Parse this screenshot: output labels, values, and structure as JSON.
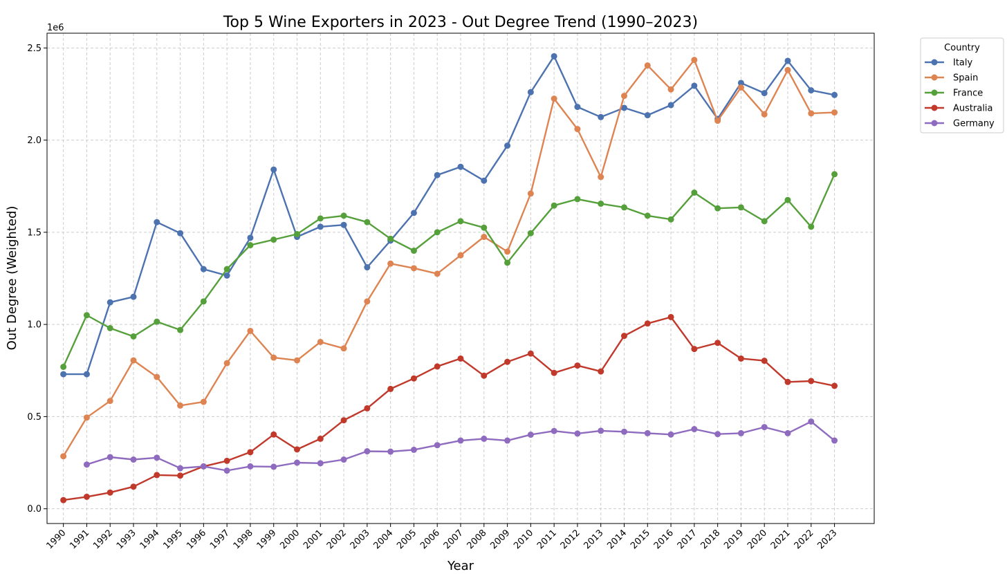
{
  "chart_data": {
    "type": "line",
    "title": "Top 5 Wine Exporters in 2023 - Out Degree Trend (1990–2023)",
    "xlabel": "Year",
    "ylabel": "Out Degree (Weighted)",
    "y_multiplier_label": "1e6",
    "x": [
      1990,
      1991,
      1992,
      1993,
      1994,
      1995,
      1996,
      1997,
      1998,
      1999,
      2000,
      2001,
      2002,
      2003,
      2004,
      2005,
      2006,
      2007,
      2008,
      2009,
      2010,
      2011,
      2012,
      2013,
      2014,
      2015,
      2016,
      2017,
      2018,
      2019,
      2020,
      2021,
      2022,
      2023
    ],
    "xlim": [
      1989.3,
      2024.7
    ],
    "ylim": [
      -0.08,
      2.58
    ],
    "y_ticks": [
      0.0,
      0.5,
      1.0,
      1.5,
      2.0,
      2.5
    ],
    "y_tick_labels": [
      "0.0",
      "0.5",
      "1.0",
      "1.5",
      "2.0",
      "2.5"
    ],
    "grid": true,
    "legend": {
      "title": "Country",
      "placement": "outside-top-right"
    },
    "series": [
      {
        "name": "Italy",
        "color": "#4c72b0",
        "values": [
          0.73,
          0.73,
          1.12,
          1.15,
          1.555,
          1.495,
          1.3,
          1.265,
          1.47,
          1.84,
          1.475,
          1.53,
          1.54,
          1.31,
          1.455,
          1.605,
          1.81,
          1.855,
          1.78,
          1.97,
          2.26,
          2.455,
          2.18,
          2.125,
          2.175,
          2.135,
          2.19,
          2.295,
          2.115,
          2.31,
          2.255,
          2.43,
          2.27,
          2.245
        ]
      },
      {
        "name": "Spain",
        "color": "#dd8452",
        "values": [
          0.285,
          0.495,
          0.585,
          0.805,
          0.715,
          0.56,
          0.58,
          0.79,
          0.965,
          0.82,
          0.805,
          0.905,
          0.87,
          1.125,
          1.33,
          1.305,
          1.275,
          1.375,
          1.475,
          1.395,
          1.71,
          2.225,
          2.06,
          1.8,
          2.24,
          2.405,
          2.275,
          2.435,
          2.105,
          2.285,
          2.14,
          2.38,
          2.145,
          2.15
        ]
      },
      {
        "name": "France",
        "color": "#55a03b",
        "values": [
          0.77,
          1.05,
          0.98,
          0.935,
          1.015,
          0.97,
          1.125,
          1.3,
          1.43,
          1.46,
          1.49,
          1.575,
          1.59,
          1.555,
          1.465,
          1.4,
          1.5,
          1.56,
          1.525,
          1.335,
          1.495,
          1.645,
          1.68,
          1.655,
          1.635,
          1.59,
          1.57,
          1.715,
          1.63,
          1.635,
          1.56,
          1.675,
          1.53,
          1.815
        ]
      },
      {
        "name": "Australia",
        "color": "#c0392b",
        "values": [
          0.047,
          0.065,
          0.088,
          0.12,
          0.183,
          0.18,
          0.23,
          0.26,
          0.307,
          0.403,
          0.322,
          0.38,
          0.48,
          0.545,
          0.65,
          0.707,
          0.772,
          0.815,
          0.722,
          0.797,
          0.842,
          0.737,
          0.777,
          0.745,
          0.938,
          1.005,
          1.04,
          0.867,
          0.9,
          0.815,
          0.803,
          0.688,
          0.693,
          0.667
        ]
      },
      {
        "name": "Germany",
        "color": "#8e6bbf",
        "values": [
          null,
          0.24,
          0.28,
          0.267,
          0.277,
          0.22,
          0.23,
          0.207,
          0.23,
          0.228,
          0.25,
          0.247,
          0.267,
          0.312,
          0.31,
          0.32,
          0.345,
          0.37,
          0.38,
          0.37,
          0.402,
          0.422,
          0.408,
          0.423,
          0.418,
          0.41,
          0.403,
          0.432,
          0.405,
          0.41,
          0.443,
          0.41,
          0.473,
          0.37
        ]
      }
    ]
  }
}
